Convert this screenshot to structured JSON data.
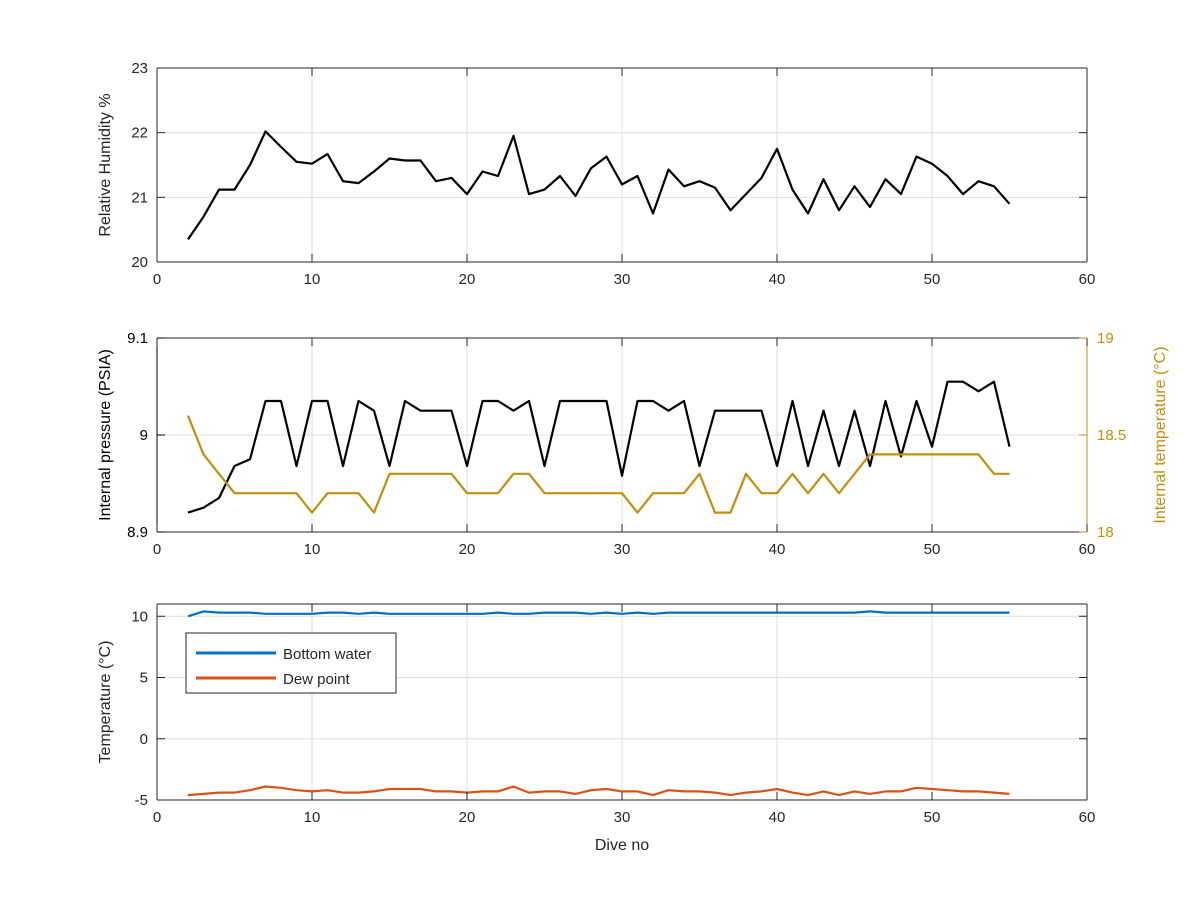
{
  "chart_data": [
    {
      "type": "line",
      "title": "",
      "xlabel": "",
      "ylabel": "Relative Humidity %",
      "xlim": [
        0,
        60
      ],
      "ylim": [
        20,
        23
      ],
      "xticks": [
        0,
        10,
        20,
        30,
        40,
        50,
        60
      ],
      "yticks": [
        20,
        21,
        22,
        23
      ],
      "xtick_labels": [
        "0",
        "10",
        "20",
        "30",
        "40",
        "50",
        "60"
      ],
      "ytick_labels": [
        "20",
        "21",
        "22",
        "23"
      ],
      "grid": true,
      "series": [
        {
          "color": "#000000",
          "x": [
            2,
            3,
            4,
            5,
            6,
            7,
            8,
            9,
            10,
            11,
            12,
            13,
            14,
            15,
            16,
            17,
            18,
            19,
            20,
            21,
            22,
            23,
            24,
            25,
            26,
            27,
            28,
            29,
            30,
            31,
            32,
            33,
            34,
            35,
            36,
            37,
            38,
            39,
            40,
            41,
            42,
            43,
            44,
            45,
            46,
            47,
            48,
            49,
            50,
            51,
            52,
            53,
            54,
            55
          ],
          "y": [
            20.35,
            20.7,
            21.12,
            21.12,
            21.5,
            22.02,
            21.78,
            21.55,
            21.52,
            21.67,
            21.25,
            21.22,
            21.4,
            21.6,
            21.57,
            21.57,
            21.25,
            21.3,
            21.05,
            21.4,
            21.33,
            21.95,
            21.05,
            21.12,
            21.33,
            21.02,
            21.45,
            21.63,
            21.2,
            21.33,
            20.75,
            21.43,
            21.17,
            21.25,
            21.15,
            20.8,
            21.05,
            21.3,
            21.75,
            21.12,
            20.75,
            21.28,
            20.8,
            21.17,
            20.85,
            21.28,
            21.05,
            21.63,
            21.52,
            21.33,
            21.05,
            21.25,
            21.17,
            20.9
          ]
        }
      ]
    },
    {
      "type": "line",
      "title": "",
      "xlabel": "",
      "ylabel": "Internal pressure (PSIA)",
      "y2label": "Internal temperature (°C)",
      "xlim": [
        0,
        60
      ],
      "ylim": [
        8.9,
        9.1
      ],
      "y2lim": [
        18,
        19
      ],
      "xticks": [
        0,
        10,
        20,
        30,
        40,
        50,
        60
      ],
      "yticks": [
        8.9,
        9,
        9.1
      ],
      "y2ticks": [
        18,
        18.5,
        19
      ],
      "xtick_labels": [
        "0",
        "10",
        "20",
        "30",
        "40",
        "50",
        "60"
      ],
      "ytick_labels": [
        "8.9",
        "9",
        "9.1"
      ],
      "y2tick_labels": [
        "18",
        "18.5",
        "19"
      ],
      "grid": true,
      "left_color": "#000000",
      "right_color": "#c0900c",
      "series": [
        {
          "axis": "left",
          "color": "#000000",
          "x": [
            2,
            3,
            4,
            5,
            6,
            7,
            8,
            9,
            10,
            11,
            12,
            13,
            14,
            15,
            16,
            17,
            18,
            19,
            20,
            21,
            22,
            23,
            24,
            25,
            26,
            27,
            28,
            29,
            30,
            31,
            32,
            33,
            34,
            35,
            36,
            37,
            38,
            39,
            40,
            41,
            42,
            43,
            44,
            45,
            46,
            47,
            48,
            49,
            50,
            51,
            52,
            53,
            54,
            55
          ],
          "y": [
            8.92,
            8.925,
            8.935,
            8.968,
            8.975,
            9.035,
            9.035,
            8.968,
            9.035,
            9.035,
            8.968,
            9.035,
            9.025,
            8.968,
            9.035,
            9.025,
            9.025,
            9.025,
            8.968,
            9.035,
            9.035,
            9.025,
            9.035,
            8.968,
            9.035,
            9.035,
            9.035,
            9.035,
            8.958,
            9.035,
            9.035,
            9.025,
            9.035,
            8.968,
            9.025,
            9.025,
            9.025,
            9.025,
            8.968,
            9.035,
            8.968,
            9.025,
            8.968,
            9.025,
            8.968,
            9.035,
            8.978,
            9.035,
            8.988,
            9.055,
            9.055,
            9.045,
            9.055,
            8.988
          ]
        },
        {
          "axis": "right",
          "color": "#c0900c",
          "x": [
            2,
            3,
            4,
            5,
            6,
            7,
            8,
            9,
            10,
            11,
            12,
            13,
            14,
            15,
            16,
            17,
            18,
            19,
            20,
            21,
            22,
            23,
            24,
            25,
            26,
            27,
            28,
            29,
            30,
            31,
            32,
            33,
            34,
            35,
            36,
            37,
            38,
            39,
            40,
            41,
            42,
            43,
            44,
            45,
            46,
            47,
            48,
            49,
            50,
            51,
            52,
            53,
            54,
            55
          ],
          "y": [
            18.6,
            18.4,
            18.3,
            18.2,
            18.2,
            18.2,
            18.2,
            18.2,
            18.1,
            18.2,
            18.2,
            18.2,
            18.1,
            18.3,
            18.3,
            18.3,
            18.3,
            18.3,
            18.2,
            18.2,
            18.2,
            18.3,
            18.3,
            18.2,
            18.2,
            18.2,
            18.2,
            18.2,
            18.2,
            18.1,
            18.2,
            18.2,
            18.2,
            18.3,
            18.1,
            18.1,
            18.3,
            18.2,
            18.2,
            18.3,
            18.2,
            18.3,
            18.2,
            18.3,
            18.4,
            18.4,
            18.4,
            18.4,
            18.4,
            18.4,
            18.4,
            18.4,
            18.3,
            18.3
          ]
        }
      ]
    },
    {
      "type": "line",
      "title": "",
      "xlabel": "Dive no",
      "ylabel": "Temperature (°C)",
      "xlim": [
        0,
        60
      ],
      "ylim": [
        -5,
        11
      ],
      "xticks": [
        0,
        10,
        20,
        30,
        40,
        50,
        60
      ],
      "yticks": [
        -5,
        0,
        5,
        10
      ],
      "xtick_labels": [
        "0",
        "10",
        "20",
        "30",
        "40",
        "50",
        "60"
      ],
      "ytick_labels": [
        "-5",
        "0",
        "5",
        "10"
      ],
      "grid": true,
      "legend_position": "top-left",
      "series": [
        {
          "name": "Bottom water",
          "color": "#0072bd",
          "x": [
            2,
            3,
            4,
            5,
            6,
            7,
            8,
            9,
            10,
            11,
            12,
            13,
            14,
            15,
            16,
            17,
            18,
            19,
            20,
            21,
            22,
            23,
            24,
            25,
            26,
            27,
            28,
            29,
            30,
            31,
            32,
            33,
            34,
            35,
            36,
            37,
            38,
            39,
            40,
            41,
            42,
            43,
            44,
            45,
            46,
            47,
            48,
            49,
            50,
            51,
            52,
            53,
            54,
            55
          ],
          "y": [
            10.0,
            10.4,
            10.3,
            10.3,
            10.3,
            10.2,
            10.2,
            10.2,
            10.2,
            10.3,
            10.3,
            10.2,
            10.3,
            10.2,
            10.2,
            10.2,
            10.2,
            10.2,
            10.2,
            10.2,
            10.3,
            10.2,
            10.2,
            10.3,
            10.3,
            10.3,
            10.2,
            10.3,
            10.2,
            10.3,
            10.2,
            10.3,
            10.3,
            10.3,
            10.3,
            10.3,
            10.3,
            10.3,
            10.3,
            10.3,
            10.3,
            10.3,
            10.3,
            10.3,
            10.4,
            10.3,
            10.3,
            10.3,
            10.3,
            10.3,
            10.3,
            10.3,
            10.3,
            10.3
          ]
        },
        {
          "name": "Dew point",
          "color": "#d95319",
          "x": [
            2,
            3,
            4,
            5,
            6,
            7,
            8,
            9,
            10,
            11,
            12,
            13,
            14,
            15,
            16,
            17,
            18,
            19,
            20,
            21,
            22,
            23,
            24,
            25,
            26,
            27,
            28,
            29,
            30,
            31,
            32,
            33,
            34,
            35,
            36,
            37,
            38,
            39,
            40,
            41,
            42,
            43,
            44,
            45,
            46,
            47,
            48,
            49,
            50,
            51,
            52,
            53,
            54,
            55
          ],
          "y": [
            -4.6,
            -4.5,
            -4.4,
            -4.4,
            -4.2,
            -3.9,
            -4.0,
            -4.2,
            -4.3,
            -4.2,
            -4.4,
            -4.4,
            -4.3,
            -4.1,
            -4.1,
            -4.1,
            -4.3,
            -4.3,
            -4.4,
            -4.3,
            -4.3,
            -3.9,
            -4.4,
            -4.3,
            -4.3,
            -4.5,
            -4.2,
            -4.1,
            -4.3,
            -4.3,
            -4.6,
            -4.2,
            -4.3,
            -4.3,
            -4.4,
            -4.6,
            -4.4,
            -4.3,
            -4.1,
            -4.4,
            -4.6,
            -4.3,
            -4.6,
            -4.3,
            -4.5,
            -4.3,
            -4.3,
            -4.0,
            -4.1,
            -4.2,
            -4.3,
            -4.3,
            -4.4,
            -4.5
          ]
        }
      ]
    }
  ]
}
